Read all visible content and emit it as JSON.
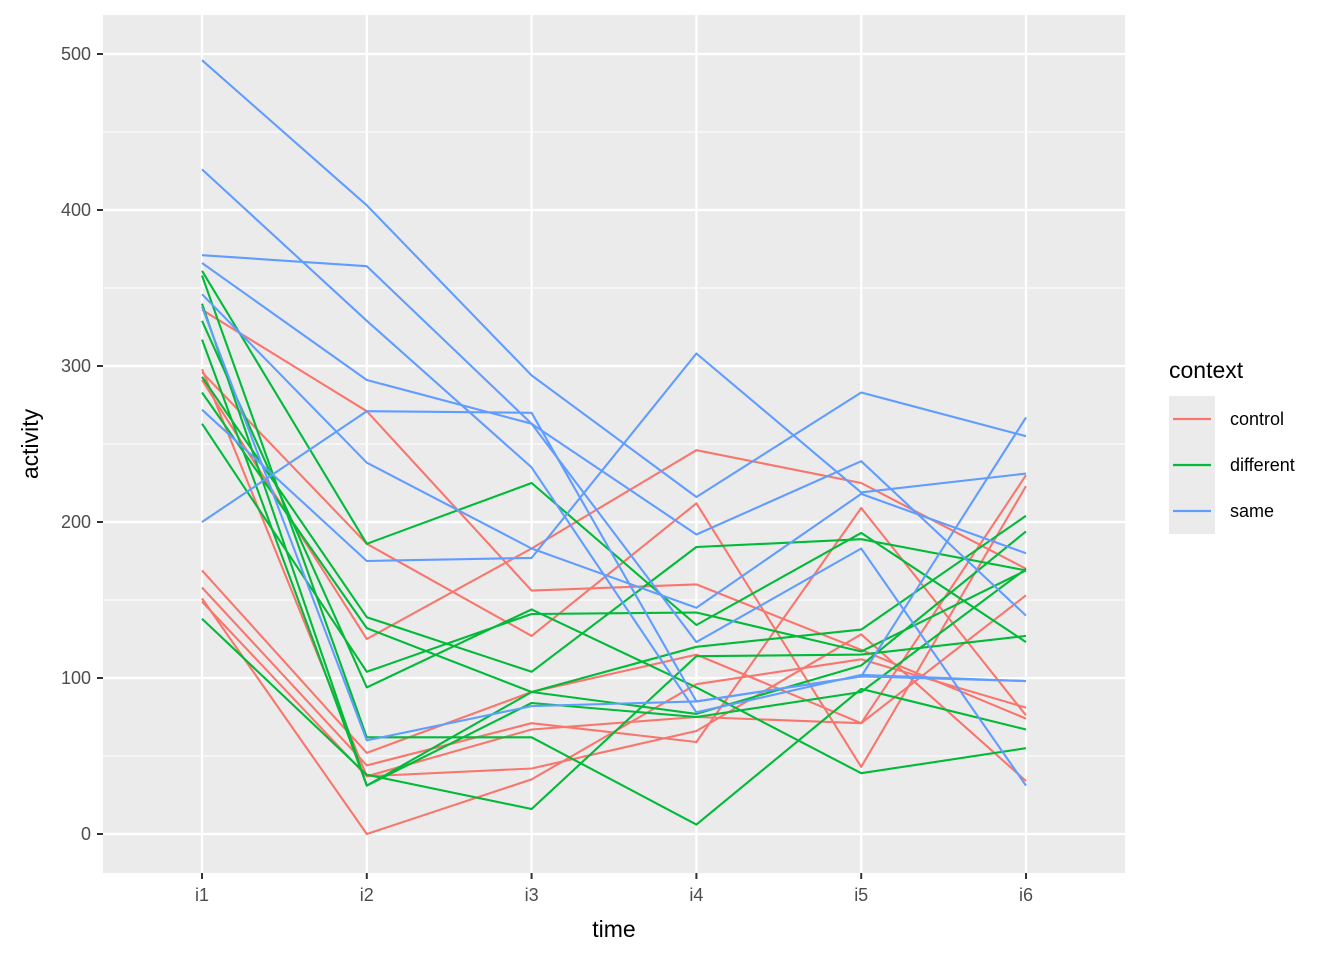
{
  "chart_data": {
    "type": "line",
    "xlabel": "time",
    "ylabel": "activity",
    "x": [
      "i1",
      "i2",
      "i3",
      "i4",
      "i5",
      "i6"
    ],
    "ylim": [
      -25,
      525
    ],
    "yticks": [
      0,
      100,
      200,
      300,
      400,
      500
    ],
    "grid": true,
    "legend": {
      "title": "context",
      "placement": "right",
      "entries": [
        {
          "label": "control",
          "color": "#F8766D"
        },
        {
          "label": "different",
          "color": "#00BA38"
        },
        {
          "label": "same",
          "color": "#619CFF"
        }
      ]
    },
    "series": [
      {
        "group": "control",
        "values": [
          336,
          271,
          156,
          160,
          118,
          74
        ]
      },
      {
        "group": "control",
        "values": [
          296,
          186,
          127,
          212,
          43,
          223
        ]
      },
      {
        "group": "control",
        "values": [
          291,
          125,
          183,
          246,
          225,
          170
        ]
      },
      {
        "group": "control",
        "values": [
          169,
          52,
          91,
          115,
          71,
          153
        ]
      },
      {
        "group": "control",
        "values": [
          158,
          44,
          71,
          59,
          209,
          76
        ]
      },
      {
        "group": "control",
        "values": [
          151,
          0,
          35,
          96,
          112,
          81
        ]
      },
      {
        "group": "control",
        "values": [
          149,
          37,
          42,
          66,
          128,
          34
        ]
      },
      {
        "group": "control",
        "values": [
          298,
          37,
          67,
          75,
          71,
          230
        ]
      },
      {
        "group": "different",
        "values": [
          361,
          186,
          225,
          134,
          193,
          123
        ]
      },
      {
        "group": "different",
        "values": [
          358,
          62,
          62,
          6,
          93,
          67
        ]
      },
      {
        "group": "different",
        "values": [
          329,
          94,
          144,
          94,
          39,
          55
        ]
      },
      {
        "group": "different",
        "values": [
          317,
          31,
          91,
          77,
          108,
          194
        ]
      },
      {
        "group": "different",
        "values": [
          293,
          139,
          104,
          184,
          189,
          169
        ]
      },
      {
        "group": "different",
        "values": [
          283,
          132,
          91,
          120,
          131,
          204
        ]
      },
      {
        "group": "different",
        "values": [
          263,
          104,
          141,
          142,
          117,
          169
        ]
      },
      {
        "group": "different",
        "values": [
          138,
          38,
          16,
          114,
          115,
          127
        ]
      },
      {
        "group": "different",
        "values": [
          340,
          31,
          84,
          75,
          91,
          170
        ]
      },
      {
        "group": "same",
        "values": [
          496,
          403,
          294,
          216,
          283,
          255
        ]
      },
      {
        "group": "same",
        "values": [
          426,
          329,
          235,
          78,
          102,
          98
        ]
      },
      {
        "group": "same",
        "values": [
          371,
          364,
          263,
          123,
          183,
          31
        ]
      },
      {
        "group": "same",
        "values": [
          366,
          291,
          263,
          192,
          239,
          140
        ]
      },
      {
        "group": "same",
        "values": [
          346,
          238,
          183,
          145,
          218,
          180
        ]
      },
      {
        "group": "same",
        "values": [
          272,
          175,
          177,
          308,
          219,
          231
        ]
      },
      {
        "group": "same",
        "values": [
          200,
          271,
          270,
          85,
          101,
          98
        ]
      },
      {
        "group": "same",
        "values": [
          338,
          60,
          82,
          85,
          101,
          267
        ]
      }
    ]
  }
}
